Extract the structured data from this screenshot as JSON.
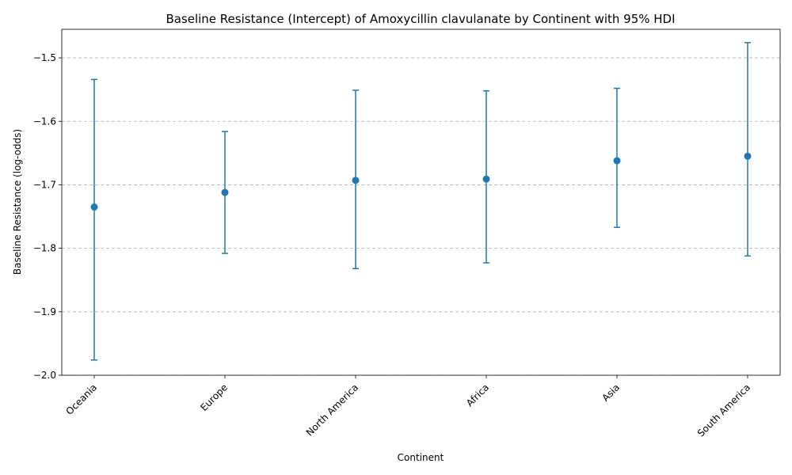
{
  "chart_data": {
    "type": "errorbar",
    "title": "Baseline Resistance (Intercept) of Amoxycillin clavulanate by Continent with 95% HDI",
    "xlabel": "Continent",
    "ylabel": "Baseline Resistance (log-odds)",
    "ylim": [
      -2.0,
      -1.455
    ],
    "yticks": [
      -2.0,
      -1.9,
      -1.8,
      -1.7,
      -1.6,
      -1.5
    ],
    "grid": "y-dashed",
    "color": "#1f77b4",
    "categories": [
      "Oceania",
      "Europe",
      "North America",
      "Africa",
      "Asia",
      "South America"
    ],
    "values": [
      -1.735,
      -1.712,
      -1.693,
      -1.691,
      -1.662,
      -1.655
    ],
    "lower": [
      -1.976,
      -1.808,
      -1.832,
      -1.823,
      -1.767,
      -1.812
    ],
    "upper": [
      -1.534,
      -1.616,
      -1.551,
      -1.552,
      -1.548,
      -1.476
    ]
  }
}
